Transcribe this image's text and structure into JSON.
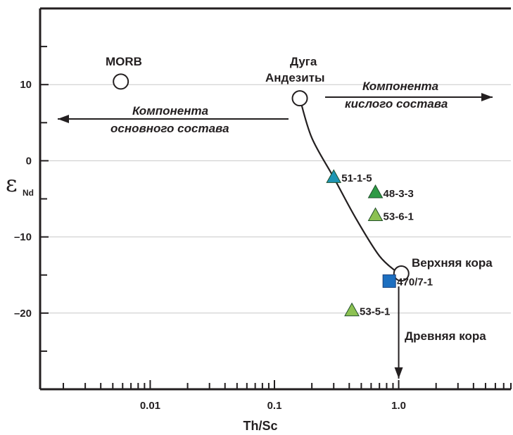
{
  "chart_data": {
    "type": "scatter",
    "xlabel": "Th/Sc",
    "ylabel_main": "ε",
    "ylabel_sub": "Nd",
    "x_scale": "log",
    "xlim": [
      0.0013,
      8.0
    ],
    "ylim": [
      -30,
      20
    ],
    "x_major_ticks": [
      {
        "value": 0.01,
        "label": "0.01"
      },
      {
        "value": 0.1,
        "label": "0.1"
      },
      {
        "value": 1.0,
        "label": "1.0"
      }
    ],
    "y_major_ticks": [
      {
        "value": 10,
        "label": "10"
      },
      {
        "value": 0,
        "label": "0"
      },
      {
        "value": -10,
        "label": "–10"
      },
      {
        "value": -20,
        "label": "–20"
      }
    ],
    "gridlines_y": [
      10,
      0,
      -10,
      -20
    ],
    "colors": {
      "triangle_teal": "#1e95b3",
      "triangle_dark_green": "#2e9a45",
      "triangle_light_green": "#8cc152",
      "square_blue": "#1d6fc0",
      "line": "#231f20"
    },
    "samples": [
      {
        "label": "51-1-5",
        "x": 0.3,
        "y": -2.2,
        "marker": "triangle",
        "color": "#1e95b3"
      },
      {
        "label": "48-3-3",
        "x": 0.65,
        "y": -4.2,
        "marker": "triangle",
        "color": "#2e9a45"
      },
      {
        "label": "53-6-1",
        "x": 0.65,
        "y": -7.2,
        "marker": "triangle",
        "color": "#8cc152"
      },
      {
        "label": "470/7-1",
        "x": 0.84,
        "y": -15.8,
        "marker": "square",
        "color": "#1d6fc0"
      },
      {
        "label": "53-5-1",
        "x": 0.42,
        "y": -19.7,
        "marker": "triangle",
        "color": "#8cc152"
      }
    ],
    "endmembers": [
      {
        "label": "MORB",
        "x": 0.0058,
        "y": 10.4
      },
      {
        "label_line1": "Дуга",
        "label_line2": "Андезиты",
        "x": 0.16,
        "y": 8.2
      },
      {
        "label": "Верхняя кора",
        "x": 1.05,
        "y": -14.8
      }
    ],
    "mixing_curve": [
      {
        "x": 0.16,
        "y": 8.2
      },
      {
        "x": 0.2,
        "y": 3.0
      },
      {
        "x": 0.3,
        "y": -2.2
      },
      {
        "x": 0.45,
        "y": -7.5
      },
      {
        "x": 0.7,
        "y": -12.5
      },
      {
        "x": 1.0,
        "y": -14.8
      }
    ],
    "annotations": {
      "mafic_line1": "Компонента",
      "mafic_line2": "основного состава",
      "felsic_line1": "Компонента",
      "felsic_line2": "кислого состава",
      "ancient_crust": "Древняя кора"
    }
  }
}
